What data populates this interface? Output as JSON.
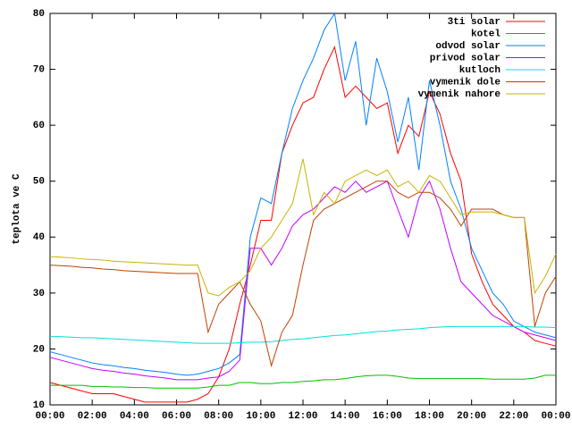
{
  "chart_data": {
    "type": "line",
    "ylabel": "teplota ve C",
    "x": [
      0,
      0.5,
      1,
      1.5,
      2,
      2.5,
      3,
      3.5,
      4,
      4.5,
      5,
      5.5,
      6,
      6.5,
      7,
      7.5,
      8,
      8.5,
      9,
      9.5,
      10,
      10.5,
      11,
      11.5,
      12,
      12.5,
      13,
      13.5,
      14,
      14.5,
      15,
      15.5,
      16,
      16.5,
      17,
      17.5,
      18,
      18.5,
      19,
      19.5,
      20,
      20.5,
      21,
      21.5,
      22,
      22.5,
      23,
      23.5,
      24
    ],
    "xlim": [
      0,
      24
    ],
    "xticks": [
      {
        "value": 0,
        "label": "00:00"
      },
      {
        "value": 2,
        "label": "02:00"
      },
      {
        "value": 4,
        "label": "04:00"
      },
      {
        "value": 6,
        "label": "06:00"
      },
      {
        "value": 8,
        "label": "08:00"
      },
      {
        "value": 10,
        "label": "10:00"
      },
      {
        "value": 12,
        "label": "12:00"
      },
      {
        "value": 14,
        "label": "14:00"
      },
      {
        "value": 16,
        "label": "16:00"
      },
      {
        "value": 18,
        "label": "18:00"
      },
      {
        "value": 20,
        "label": "20:00"
      },
      {
        "value": 22,
        "label": "22:00"
      },
      {
        "value": 24,
        "label": "00:00"
      }
    ],
    "ylim": [
      10,
      80
    ],
    "yticks": [
      10,
      20,
      30,
      40,
      50,
      60,
      70,
      80
    ],
    "legend": "top-right",
    "series": [
      {
        "name": "3ti solar",
        "color": "#ff0000",
        "values": [
          14,
          13.5,
          13,
          12.5,
          12,
          12,
          12,
          11.5,
          11,
          10.5,
          10.5,
          10.5,
          10.5,
          10.5,
          11,
          12,
          15,
          20,
          28,
          35,
          43,
          43,
          55,
          60,
          64,
          65,
          70,
          74,
          65,
          67,
          65,
          63,
          64,
          55,
          60,
          58,
          66,
          62,
          55,
          50,
          37,
          32,
          28,
          26,
          24,
          23,
          21.5,
          21,
          20.5
        ]
      },
      {
        "name": "kotel",
        "color": "#00c000",
        "values": [
          13.5,
          13.5,
          13.5,
          13.5,
          13.3,
          13.3,
          13.2,
          13.2,
          13.1,
          13.1,
          13,
          13,
          13,
          13,
          13,
          13.2,
          13.5,
          13.5,
          14,
          14,
          13.8,
          13.8,
          14,
          14,
          14.2,
          14.3,
          14.5,
          14.5,
          14.7,
          15,
          15.2,
          15.3,
          15.3,
          15.1,
          14.8,
          14.7,
          14.7,
          14.7,
          14.7,
          14.7,
          14.7,
          14.7,
          14.6,
          14.6,
          14.6,
          14.6,
          14.8,
          15.3,
          15.3
        ]
      },
      {
        "name": "odvod solar",
        "color": "#0080ff",
        "values": [
          19.5,
          19,
          18.5,
          18,
          17.5,
          17.2,
          17,
          16.7,
          16.5,
          16.2,
          16,
          15.8,
          15.5,
          15.3,
          15.5,
          16,
          16.5,
          17.5,
          19,
          40,
          47,
          46,
          55,
          63,
          68,
          72,
          77,
          80,
          68,
          75,
          60,
          72,
          66,
          57,
          65,
          52,
          68,
          60,
          50,
          45,
          38,
          34,
          30,
          28,
          25,
          24,
          23,
          22.5,
          22
        ]
      },
      {
        "name": "privod solar",
        "color": "#c000ff",
        "values": [
          18.5,
          18,
          17.5,
          17,
          16.5,
          16.2,
          16,
          15.7,
          15.5,
          15.2,
          15,
          14.8,
          14.5,
          14.5,
          14.5,
          14.8,
          15,
          16,
          18,
          38,
          38,
          35,
          38,
          42,
          44,
          45,
          47,
          49,
          48,
          50,
          48,
          49,
          50,
          45,
          40,
          47,
          50,
          45,
          38,
          32,
          30,
          28,
          26,
          25,
          24,
          23,
          22.5,
          22,
          21.5
        ]
      },
      {
        "name": "kutloch",
        "color": "#00e0e0",
        "values": [
          22.2,
          22.2,
          22.1,
          22,
          22,
          21.9,
          21.8,
          21.7,
          21.6,
          21.5,
          21.4,
          21.3,
          21.2,
          21.1,
          21,
          21,
          21,
          21,
          21.1,
          21.2,
          21.2,
          21.3,
          21.5,
          21.7,
          21.8,
          22,
          22.2,
          22.4,
          22.5,
          22.7,
          22.9,
          23.1,
          23.2,
          23.4,
          23.5,
          23.6,
          23.8,
          23.9,
          24,
          24,
          24,
          24,
          24,
          24,
          24,
          24,
          23.9,
          23.9,
          23.8
        ]
      },
      {
        "name": "vymenik dole",
        "color": "#c04000",
        "values": [
          35,
          34.9,
          34.8,
          34.6,
          34.5,
          34.3,
          34.2,
          34,
          33.9,
          33.8,
          33.7,
          33.6,
          33.5,
          33.5,
          33.5,
          23,
          28,
          30,
          32,
          28,
          25,
          17,
          23,
          26,
          35,
          43,
          45,
          46,
          47,
          48,
          49,
          50,
          50,
          48,
          47,
          48,
          48,
          47,
          45,
          42,
          45,
          45,
          45,
          44,
          43.5,
          43.5,
          24,
          30,
          33
        ]
      },
      {
        "name": "vymenik nahore",
        "color": "#c8b400",
        "values": [
          36.5,
          36.4,
          36.3,
          36.1,
          36,
          35.9,
          35.7,
          35.6,
          35.5,
          35.4,
          35.3,
          35.2,
          35.1,
          35,
          35,
          30,
          29.5,
          31,
          32,
          34,
          38,
          40,
          43,
          46,
          54,
          44,
          48,
          46,
          50,
          51,
          52,
          51,
          52,
          49,
          50,
          48,
          51,
          50,
          47,
          44,
          44.5,
          44.5,
          44.5,
          44,
          43.5,
          43.5,
          30,
          33,
          37
        ]
      }
    ]
  }
}
